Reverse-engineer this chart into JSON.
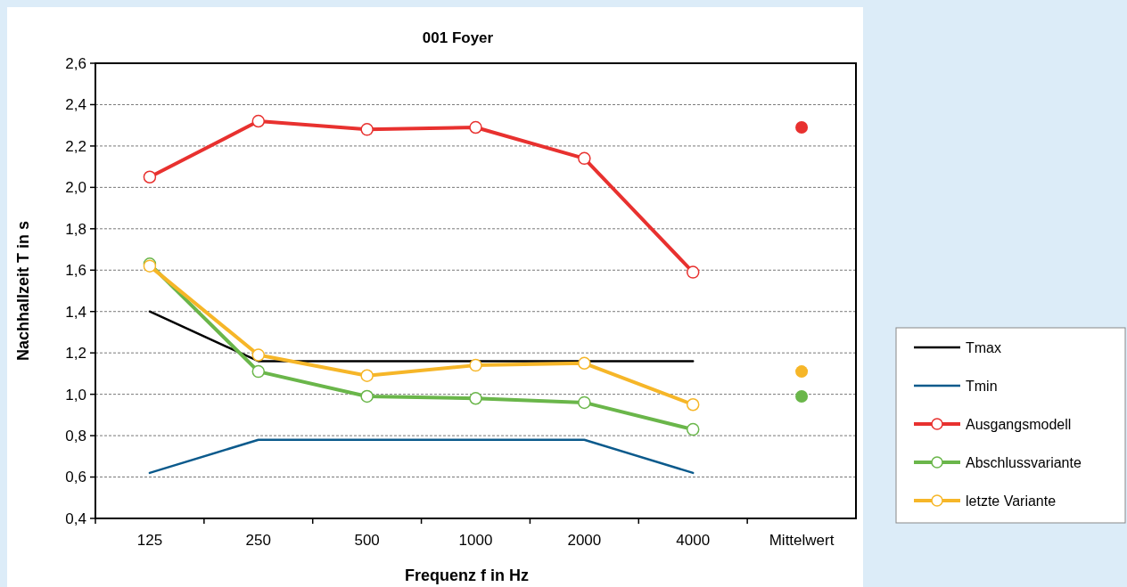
{
  "chart_data": {
    "type": "line",
    "title": "001 Foyer",
    "xlabel": "Frequenz f in Hz",
    "ylabel": "Nachhallzeit T in s",
    "categories": [
      "125",
      "250",
      "500",
      "1000",
      "2000",
      "4000",
      "Mittelwert"
    ],
    "ylim": [
      0.4,
      2.6
    ],
    "yticks": [
      {
        "value": 0.4,
        "label": "0,4"
      },
      {
        "value": 0.6,
        "label": "0,6"
      },
      {
        "value": 0.8,
        "label": "0,8"
      },
      {
        "value": 1.0,
        "label": "1,0"
      },
      {
        "value": 1.2,
        "label": "1,2"
      },
      {
        "value": 1.4,
        "label": "1,4"
      },
      {
        "value": 1.6,
        "label": "1,6"
      },
      {
        "value": 1.8,
        "label": "1,8"
      },
      {
        "value": 2.0,
        "label": "2,0"
      },
      {
        "value": 2.2,
        "label": "2,2"
      },
      {
        "value": 2.4,
        "label": "2,4"
      },
      {
        "value": 2.6,
        "label": "2,6"
      }
    ],
    "grid": "y",
    "legend": "right",
    "series": [
      {
        "name": "Tmax",
        "color": "#000000",
        "marker": "none",
        "values": [
          1.4,
          1.16,
          1.16,
          1.16,
          1.16,
          1.16,
          null
        ]
      },
      {
        "name": "Tmin",
        "color": "#0b5a8c",
        "marker": "none",
        "values": [
          0.62,
          0.78,
          0.78,
          0.78,
          0.78,
          0.62,
          null
        ]
      },
      {
        "name": "Ausgangsmodell",
        "color": "#e8312f",
        "marker": "circle",
        "values": [
          2.05,
          2.32,
          2.28,
          2.29,
          2.14,
          1.59,
          null
        ]
      },
      {
        "name": "Abschlussvariante",
        "color": "#6ab64a",
        "marker": "circle",
        "values": [
          1.63,
          1.11,
          0.99,
          0.98,
          0.96,
          0.83,
          null
        ]
      },
      {
        "name": "letzte Variante",
        "color": "#f6b628",
        "marker": "circle",
        "values": [
          1.62,
          1.19,
          1.09,
          1.14,
          1.15,
          0.95,
          null
        ]
      },
      {
        "type": "scatter",
        "color": "#e8312f",
        "x": [
          "Mittelwert"
        ],
        "values": [
          2.29
        ]
      },
      {
        "type": "scatter",
        "color": "#f6b628",
        "x": [
          "Mittelwert"
        ],
        "values": [
          1.11
        ]
      },
      {
        "type": "scatter",
        "color": "#6ab64a",
        "x": [
          "Mittelwert"
        ],
        "values": [
          0.99
        ]
      }
    ]
  }
}
